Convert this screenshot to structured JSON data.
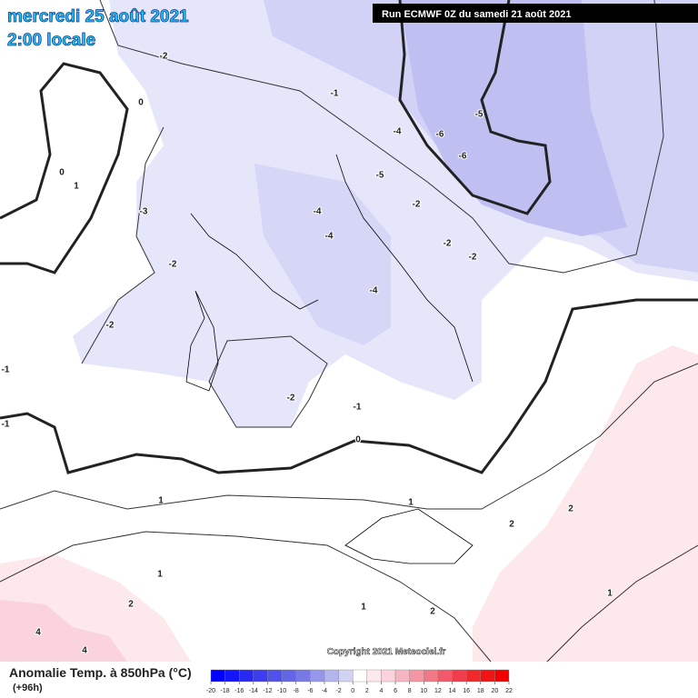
{
  "header": {
    "date": "mercredi 25 août 2021",
    "time": "2:00 locale",
    "run": "Run ECMWF 0Z du samedi 21 août 2021"
  },
  "footer": {
    "title": "Anomalie Temp. à 850hPa (°C)",
    "lead": "(+96h)",
    "copyright": "Copyright 2021 Meteociel.fr"
  },
  "colorbar": {
    "ticks": [
      -20,
      -18,
      -16,
      -14,
      -12,
      -10,
      -8,
      -6,
      -4,
      -2,
      0,
      2,
      4,
      6,
      8,
      10,
      12,
      14,
      16,
      18,
      20,
      22
    ],
    "colors": [
      "#0000ff",
      "#1414ff",
      "#2828f5",
      "#3c3cf0",
      "#5050eb",
      "#6464e6",
      "#7878e6",
      "#9696eb",
      "#b4b4f0",
      "#d2d2f6",
      "#ffffff",
      "#fde8ec",
      "#fbd3dc",
      "#f8b4c0",
      "#f596a5",
      "#f27888",
      "#f05a6a",
      "#f03c4c",
      "#f0282e",
      "#f01414",
      "#f00000"
    ]
  },
  "contour_labels": [
    -2,
    0,
    -1,
    -4,
    -6,
    -5,
    -6,
    -5,
    0,
    1,
    -3,
    -4,
    -2,
    -4,
    -2,
    -2,
    -2,
    -4,
    -2,
    -1,
    -2,
    -1,
    -1,
    0,
    1,
    1,
    2,
    2,
    1,
    2,
    1,
    2,
    1,
    4,
    4
  ]
}
